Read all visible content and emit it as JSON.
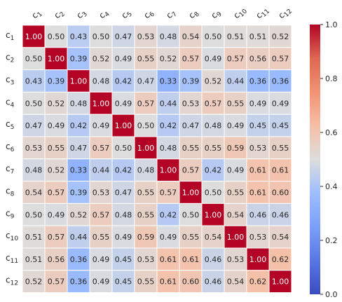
{
  "chart_data": {
    "type": "heatmap",
    "title": "",
    "xlabel": "",
    "ylabel": "",
    "labels": [
      {
        "base": "c",
        "sub": "1"
      },
      {
        "base": "c",
        "sub": "2"
      },
      {
        "base": "c",
        "sub": "3"
      },
      {
        "base": "c",
        "sub": "4"
      },
      {
        "base": "c",
        "sub": "5"
      },
      {
        "base": "c",
        "sub": "6"
      },
      {
        "base": "c",
        "sub": "7"
      },
      {
        "base": "c",
        "sub": "8"
      },
      {
        "base": "c",
        "sub": "9"
      },
      {
        "base": "c",
        "sub": "10"
      },
      {
        "base": "c",
        "sub": "11"
      },
      {
        "base": "c",
        "sub": "12"
      }
    ],
    "matrix": [
      [
        1.0,
        0.5,
        0.43,
        0.5,
        0.47,
        0.53,
        0.48,
        0.54,
        0.5,
        0.51,
        0.51,
        0.52
      ],
      [
        0.5,
        1.0,
        0.39,
        0.52,
        0.49,
        0.55,
        0.52,
        0.57,
        0.49,
        0.57,
        0.56,
        0.57
      ],
      [
        0.43,
        0.39,
        1.0,
        0.48,
        0.42,
        0.47,
        0.33,
        0.39,
        0.52,
        0.44,
        0.36,
        0.36
      ],
      [
        0.5,
        0.52,
        0.48,
        1.0,
        0.49,
        0.57,
        0.44,
        0.53,
        0.57,
        0.55,
        0.49,
        0.49
      ],
      [
        0.47,
        0.49,
        0.42,
        0.49,
        1.0,
        0.5,
        0.42,
        0.47,
        0.48,
        0.49,
        0.45,
        0.45
      ],
      [
        0.53,
        0.55,
        0.47,
        0.57,
        0.5,
        1.0,
        0.48,
        0.55,
        0.55,
        0.59,
        0.53,
        0.55
      ],
      [
        0.48,
        0.52,
        0.33,
        0.44,
        0.42,
        0.48,
        1.0,
        0.57,
        0.42,
        0.49,
        0.61,
        0.61
      ],
      [
        0.54,
        0.57,
        0.39,
        0.53,
        0.47,
        0.55,
        0.57,
        1.0,
        0.5,
        0.55,
        0.61,
        0.6
      ],
      [
        0.5,
        0.49,
        0.52,
        0.57,
        0.48,
        0.55,
        0.42,
        0.5,
        1.0,
        0.54,
        0.46,
        0.46
      ],
      [
        0.51,
        0.57,
        0.44,
        0.55,
        0.49,
        0.59,
        0.49,
        0.55,
        0.54,
        1.0,
        0.53,
        0.54
      ],
      [
        0.51,
        0.56,
        0.36,
        0.49,
        0.45,
        0.53,
        0.61,
        0.61,
        0.46,
        0.53,
        1.0,
        0.62
      ],
      [
        0.52,
        0.57,
        0.36,
        0.49,
        0.45,
        0.55,
        0.61,
        0.6,
        0.46,
        0.54,
        0.62,
        1.0
      ]
    ],
    "vmin": 0.0,
    "vmax": 1.0,
    "colormap": "coolwarm",
    "colorbar_ticks": [
      "0.0",
      "0.2",
      "0.4",
      "0.6",
      "0.8",
      "1.0"
    ],
    "annotation_format": "2 decimals",
    "cell_border_color": "#ffffff",
    "grid": false
  }
}
